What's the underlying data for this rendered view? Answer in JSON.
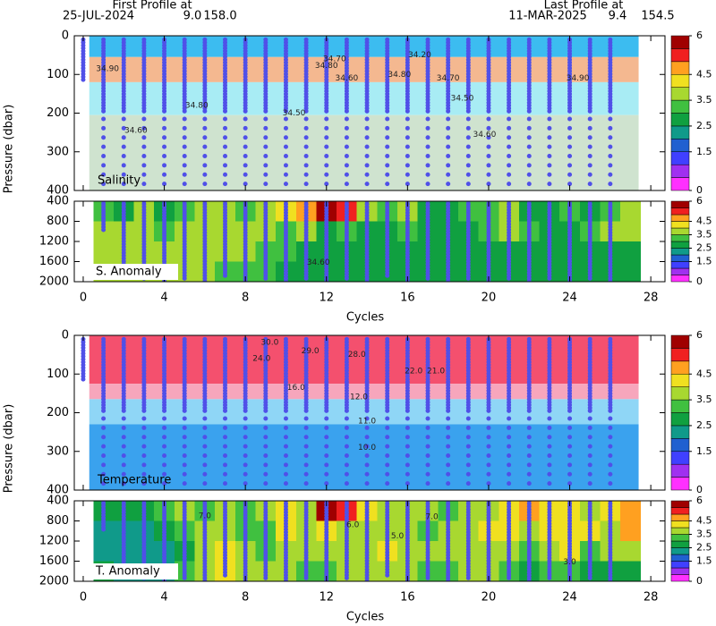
{
  "header": {
    "first_label": "First Profile at",
    "first_date": "25-JUL-2024",
    "first_lat": "9.0",
    "first_lon": "158.0",
    "last_label": "Last Profile at",
    "last_date": "11-MAR-2025",
    "last_lat": "9.4",
    "last_lon": "154.5"
  },
  "colorbar": {
    "bounds": [
      0,
      0.5,
      1,
      1.5,
      2,
      2.5,
      3,
      3.5,
      4,
      4.5,
      5,
      5.5,
      6
    ],
    "colors": [
      "#ff30ff",
      "#a030f0",
      "#4040ff",
      "#2060d0",
      "#109a8a",
      "#10a040",
      "#40c040",
      "#a8d830",
      "#f0e020",
      "#ffa020",
      "#f02020",
      "#a00000"
    ],
    "ticks": [
      6,
      4.5,
      3.5,
      2.5,
      1.5,
      0
    ]
  },
  "profiles": {
    "cycles": [
      0,
      1,
      2,
      3,
      4,
      5,
      6,
      7,
      8,
      9,
      10,
      11,
      12,
      13,
      14,
      15,
      16,
      17,
      18,
      19,
      20,
      21,
      22,
      23,
      24,
      25,
      26
    ],
    "depth": [
      115,
      1000,
      1900,
      1950,
      2000,
      1950,
      2000,
      1900,
      2000,
      1950,
      2000,
      1950,
      2000,
      1950,
      2000,
      1900,
      2000,
      1950,
      2000,
      1950,
      2000,
      1950,
      2000,
      1950,
      2000,
      1950,
      2000
    ]
  },
  "chart_data": [
    {
      "type": "section",
      "label": "Salinity",
      "ylabel": "Pressure (dbar)",
      "ylim": [
        400,
        0
      ],
      "yticks": [
        0,
        100,
        200,
        300,
        400
      ],
      "xlim": [
        -0.44,
        28.7
      ],
      "xticks": [
        0,
        4,
        8,
        12,
        16,
        20,
        24,
        28
      ],
      "field_x": [
        0.3,
        27.4
      ],
      "layers": [
        {
          "color": "#3cbcf0",
          "top": 0,
          "bottom": 55
        },
        {
          "color": "#f4b890",
          "top": 55,
          "bottom": 120
        },
        {
          "color": "#a8ecf4",
          "top": 120,
          "bottom": 205
        },
        {
          "color": "#cfe3cf",
          "top": 205,
          "bottom": 400
        }
      ],
      "contours": [
        {
          "x": 1.2,
          "y": 85,
          "label": "34.90"
        },
        {
          "x": 12,
          "y": 78,
          "label": "34.80"
        },
        {
          "x": 12.4,
          "y": 60,
          "label": "34.70"
        },
        {
          "x": 13,
          "y": 110,
          "label": "34.60"
        },
        {
          "x": 16.6,
          "y": 50,
          "label": "34.20"
        },
        {
          "x": 15.6,
          "y": 100,
          "label": "34.80"
        },
        {
          "x": 18,
          "y": 110,
          "label": "34.70"
        },
        {
          "x": 18.7,
          "y": 162,
          "label": "34.50"
        },
        {
          "x": 24.4,
          "y": 110,
          "label": "34.90"
        },
        {
          "x": 5.6,
          "y": 180,
          "label": "34.80"
        },
        {
          "x": 10.4,
          "y": 200,
          "label": "34.50"
        },
        {
          "x": 2.6,
          "y": 245,
          "label": "34.60"
        },
        {
          "x": 19.8,
          "y": 255,
          "label": "34.60"
        }
      ]
    },
    {
      "type": "anomaly",
      "label": "S. Anomaly",
      "xlabel": "Cycles",
      "ylim": [
        2000,
        400
      ],
      "yticks": [
        400,
        800,
        1200,
        1600,
        2000
      ],
      "xlim": [
        -0.44,
        28.7
      ],
      "xticks": [
        0,
        4,
        8,
        12,
        16,
        20,
        24,
        28
      ],
      "ybins": [
        400,
        800,
        1200,
        1600,
        2000
      ],
      "x": [
        0.5,
        1,
        2,
        3,
        4,
        5,
        6,
        7,
        8,
        9,
        10,
        11,
        12,
        13,
        14,
        15,
        16,
        17,
        18,
        19,
        20,
        21,
        22,
        23,
        24,
        25,
        26,
        27
      ],
      "cells": [
        [
          3.7,
          3.2,
          2.7,
          3.7,
          2.7,
          3.2,
          3.7,
          3.7,
          3.2,
          3.7,
          4.2,
          4.7,
          5.7,
          5.2,
          3.7,
          3.2,
          3.7,
          2.7,
          2.7,
          3.2,
          3.2,
          3.7,
          2.7,
          2.7,
          3.2,
          2.7,
          3.2,
          3.7
        ],
        [
          3.7,
          3.7,
          3.7,
          3.7,
          3.2,
          3.7,
          3.7,
          3.7,
          3.7,
          3.7,
          3.2,
          3.7,
          2.7,
          3.2,
          2.7,
          2.7,
          3.2,
          2.7,
          2.7,
          2.7,
          3.2,
          3.7,
          3.2,
          2.7,
          2.7,
          3.2,
          3.7,
          3.7
        ],
        [
          3.7,
          3.7,
          3.7,
          3.7,
          3.7,
          3.7,
          3.7,
          3.7,
          3.7,
          3.2,
          3.2,
          2.7,
          2.7,
          2.7,
          2.7,
          2.7,
          2.7,
          2.7,
          2.7,
          2.7,
          2.7,
          2.7,
          2.7,
          2.7,
          2.7,
          2.7,
          2.7,
          2.7
        ],
        [
          3.7,
          3.7,
          3.7,
          3.7,
          3.7,
          3.7,
          3.7,
          3.2,
          3.2,
          3.2,
          2.7,
          2.7,
          2.7,
          2.7,
          2.7,
          2.7,
          2.7,
          2.7,
          2.7,
          2.7,
          2.7,
          2.7,
          2.7,
          2.7,
          2.7,
          2.7,
          2.7,
          2.7
        ]
      ],
      "contours": [
        {
          "x": 11.6,
          "y": 1620,
          "label": "34.60"
        }
      ]
    },
    {
      "type": "section",
      "label": "Temperature",
      "ylabel": "Pressure (dbar)",
      "ylim": [
        400,
        0
      ],
      "yticks": [
        0,
        100,
        200,
        300,
        400
      ],
      "xlim": [
        -0.44,
        28.7
      ],
      "xticks": [
        0,
        4,
        8,
        12,
        16,
        20,
        24,
        28
      ],
      "field_x": [
        0.3,
        27.4
      ],
      "layers": [
        {
          "color": "#f4506e",
          "top": 0,
          "bottom": 125
        },
        {
          "color": "#f7a6bc",
          "top": 125,
          "bottom": 165
        },
        {
          "color": "#8fd6f6",
          "top": 165,
          "bottom": 230
        },
        {
          "color": "#3aa2ee",
          "top": 230,
          "bottom": 400
        }
      ],
      "contours": [
        {
          "x": 9.2,
          "y": 18,
          "label": "30.0"
        },
        {
          "x": 11.2,
          "y": 40,
          "label": "29.0"
        },
        {
          "x": 13.5,
          "y": 50,
          "label": "28.0"
        },
        {
          "x": 8.8,
          "y": 60,
          "label": "24.0"
        },
        {
          "x": 16.3,
          "y": 92,
          "label": "22.0"
        },
        {
          "x": 17.4,
          "y": 92,
          "label": "21.0"
        },
        {
          "x": 10.5,
          "y": 135,
          "label": "16.0"
        },
        {
          "x": 13.6,
          "y": 160,
          "label": "12.0"
        },
        {
          "x": 14,
          "y": 222,
          "label": "11.0"
        },
        {
          "x": 14,
          "y": 290,
          "label": "10.0"
        }
      ]
    },
    {
      "type": "anomaly",
      "label": "T. Anomaly",
      "xlabel": "Cycles",
      "ylim": [
        2000,
        400
      ],
      "yticks": [
        400,
        800,
        1200,
        1600,
        2000
      ],
      "xlim": [
        -0.44,
        28.7
      ],
      "xticks": [
        0,
        4,
        8,
        12,
        16,
        20,
        24,
        28
      ],
      "ybins": [
        400,
        800,
        1200,
        1600,
        2000
      ],
      "x": [
        0.5,
        1,
        2,
        3,
        4,
        5,
        6,
        7,
        8,
        9,
        10,
        11,
        12,
        13,
        14,
        15,
        16,
        17,
        18,
        19,
        20,
        21,
        22,
        23,
        24,
        25,
        26,
        27
      ],
      "cells": [
        [
          2.7,
          2.7,
          2.7,
          2.7,
          3.2,
          3.7,
          3.2,
          3.7,
          3.2,
          3.7,
          4.2,
          3.7,
          5.7,
          5.2,
          4.2,
          3.7,
          3.7,
          3.7,
          3.2,
          3.7,
          3.7,
          4.2,
          4.7,
          4.2,
          4.2,
          3.7,
          4.2,
          4.7
        ],
        [
          2.7,
          2.2,
          2.2,
          2.2,
          2.7,
          3.2,
          3.7,
          3.7,
          3.2,
          3.2,
          4.2,
          3.7,
          4.2,
          3.7,
          3.7,
          3.7,
          3.7,
          3.2,
          3.7,
          3.7,
          4.2,
          4.2,
          3.7,
          4.2,
          4.2,
          4.2,
          3.7,
          4.7
        ],
        [
          2.7,
          2.2,
          2.2,
          2.2,
          2.2,
          2.7,
          3.7,
          4.2,
          3.7,
          3.2,
          3.7,
          3.7,
          3.7,
          3.7,
          3.7,
          4.2,
          3.7,
          3.7,
          3.7,
          3.7,
          3.7,
          3.7,
          3.2,
          3.7,
          4.2,
          3.2,
          3.7,
          3.7
        ],
        [
          2.7,
          2.7,
          2.2,
          2.2,
          2.2,
          3.2,
          3.7,
          4.2,
          3.7,
          3.7,
          3.7,
          3.2,
          3.2,
          3.7,
          3.7,
          3.7,
          3.7,
          3.2,
          3.2,
          3.7,
          3.7,
          3.2,
          2.7,
          3.2,
          3.2,
          2.7,
          2.7,
          2.7
        ]
      ],
      "contours": [
        {
          "x": 6,
          "y": 700,
          "label": "7.0"
        },
        {
          "x": 13.3,
          "y": 880,
          "label": "6.0"
        },
        {
          "x": 15.5,
          "y": 1100,
          "label": "5.0"
        },
        {
          "x": 17.2,
          "y": 720,
          "label": "7.0"
        },
        {
          "x": 24,
          "y": 1620,
          "label": "3.0"
        }
      ]
    }
  ]
}
